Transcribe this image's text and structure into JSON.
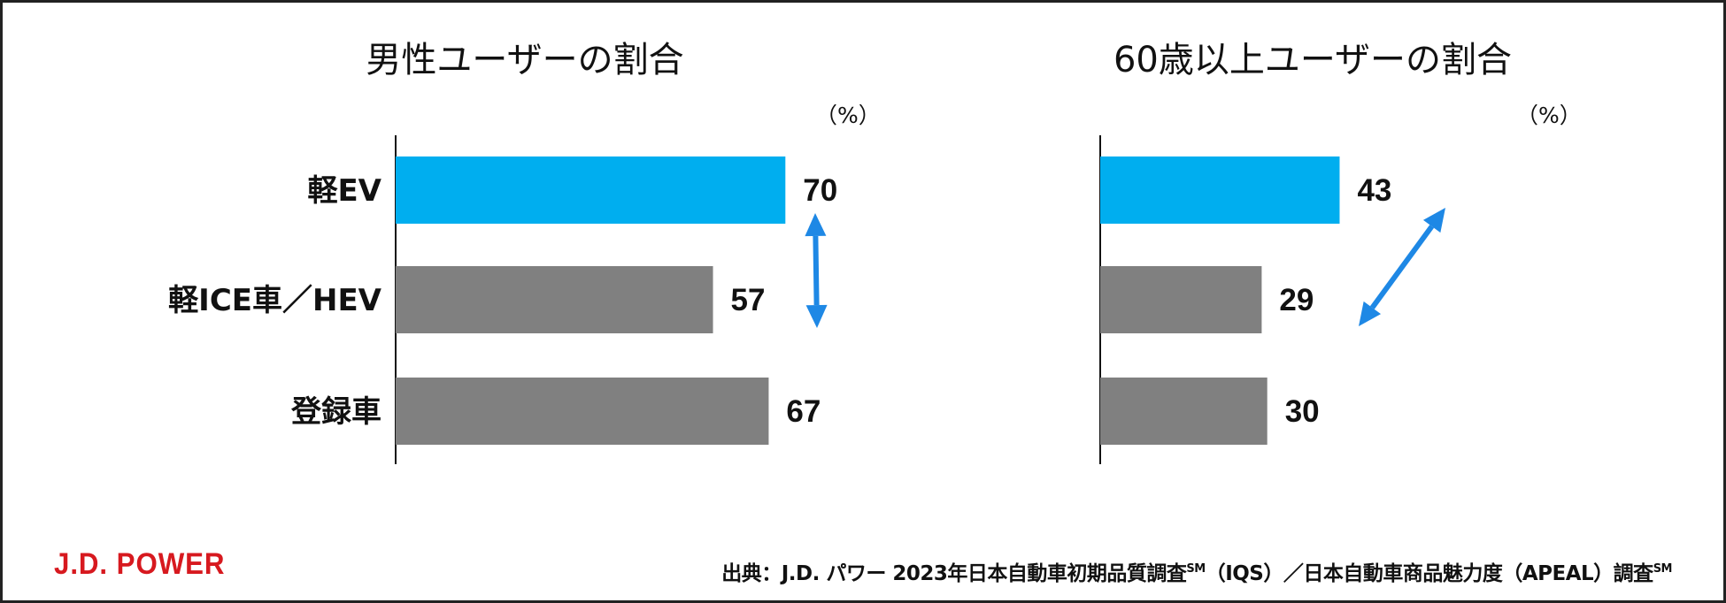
{
  "chart_data": [
    {
      "type": "bar",
      "orientation": "horizontal",
      "title": "男性ユーザーの割合",
      "unit_label": "（%）",
      "categories": [
        "軽EV",
        "軽ICE車／HEV",
        "登録車"
      ],
      "values": [
        70,
        57,
        67
      ],
      "colors": [
        "#00aeef",
        "#808080",
        "#808080"
      ],
      "xlim": [
        0,
        100
      ],
      "annotation": "double-headed arrow comparing 軽EV and 軽ICE車／HEV",
      "arrow_color": "#1e88e5"
    },
    {
      "type": "bar",
      "orientation": "horizontal",
      "title": "60歳以上ユーザーの割合",
      "unit_label": "（%）",
      "categories": [
        "軽EV",
        "軽ICE車／HEV",
        "登録車"
      ],
      "values": [
        43,
        29,
        30
      ],
      "colors": [
        "#00aeef",
        "#808080",
        "#808080"
      ],
      "xlim": [
        0,
        100
      ],
      "annotation": "double-headed arrow comparing 軽EV and 軽ICE車／HEV",
      "arrow_color": "#1e88e5"
    }
  ],
  "footer": {
    "logo": "J.D. POWER",
    "logo_color": "#d7191f",
    "source_main": "出典：J.D. パワー 2023年日本自動車初期品質調査",
    "source_sm1": "SM",
    "source_mid": "（IQS）／日本自動車商品魅力度（APEAL）調査",
    "source_sm2": "SM"
  }
}
